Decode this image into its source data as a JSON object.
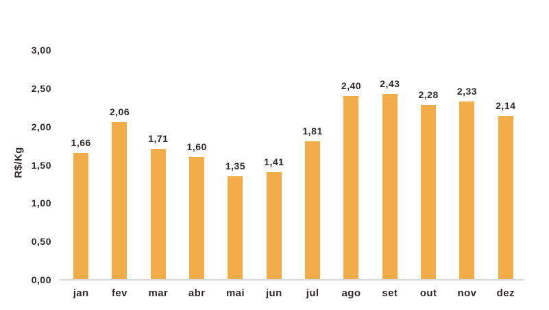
{
  "chart_data": {
    "type": "bar",
    "categories": [
      "jan",
      "fev",
      "mar",
      "abr",
      "mai",
      "jun",
      "jul",
      "ago",
      "set",
      "out",
      "nov",
      "dez"
    ],
    "values": [
      1.66,
      2.06,
      1.71,
      1.6,
      1.35,
      1.41,
      1.81,
      2.4,
      2.43,
      2.28,
      2.33,
      2.14
    ],
    "value_labels": [
      "1,66",
      "2,06",
      "1,71",
      "1,60",
      "1,35",
      "1,41",
      "1,81",
      "2,40",
      "2,43",
      "2,28",
      "2,33",
      "2,14"
    ],
    "title": "",
    "xlabel": "",
    "ylabel": "R$/Kg",
    "ylim": [
      0,
      3
    ],
    "y_tick_step": 0.5,
    "y_tick_labels": [
      "0,00",
      "0,50",
      "1,00",
      "1,50",
      "2,00",
      "2,50",
      "3,00"
    ],
    "grid": false,
    "legend": "none"
  },
  "colors": {
    "bar": "#f2ac48",
    "text": "#2d2a27",
    "axis_line": "#d9d9d9",
    "background": "#ffffff"
  }
}
